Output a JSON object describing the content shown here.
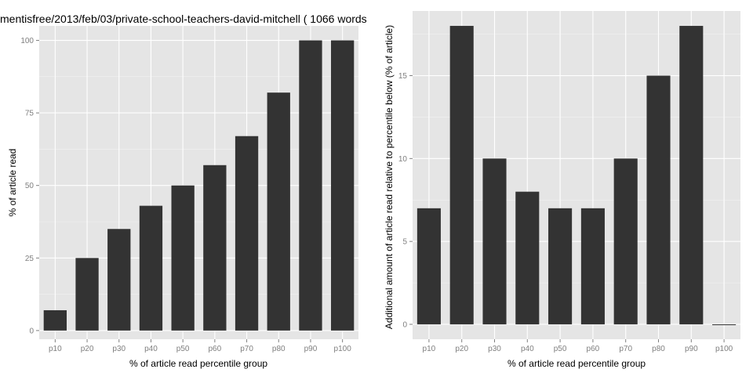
{
  "colors": {
    "panel_bg": "#e5e5e5",
    "bar": "#333333",
    "grid": "#ffffff",
    "tick": "#7f7f7f"
  },
  "chart_data": [
    {
      "type": "bar",
      "title": "mentisfree/2013/feb/03/private-school-teachers-david-mitchell ( 1066 words",
      "xlabel": "% of article read percentile group",
      "ylabel": "% of article read",
      "categories": [
        "p10",
        "p20",
        "p30",
        "p40",
        "p50",
        "p60",
        "p70",
        "p80",
        "p90",
        "p100"
      ],
      "values": [
        7,
        25,
        35,
        43,
        50,
        57,
        67,
        82,
        100,
        100
      ],
      "ylim": [
        -3,
        105
      ],
      "yticks": [
        0,
        25,
        50,
        75,
        100
      ],
      "grid": true,
      "legend": "none"
    },
    {
      "type": "bar",
      "title": "",
      "xlabel": "% of article read percentile group",
      "ylabel": "Additional amount of article read relative to percentile below (% of article)",
      "categories": [
        "p10",
        "p20",
        "p30",
        "p40",
        "p50",
        "p60",
        "p70",
        "p80",
        "p90",
        "p100"
      ],
      "values": [
        7,
        18,
        10,
        8,
        7,
        7,
        10,
        15,
        18,
        0
      ],
      "ylim": [
        -0.9,
        18.9
      ],
      "yticks": [
        0,
        5,
        10,
        15
      ],
      "grid": true,
      "legend": "none"
    }
  ]
}
